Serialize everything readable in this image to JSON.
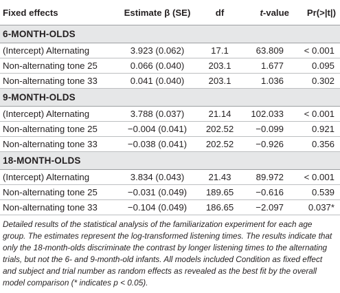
{
  "header": {
    "col1": "Fixed effects",
    "col2": "Estimate β (SE)",
    "col3": "df",
    "col4_t": "t",
    "col4_rest": "-value",
    "col5": "Pr(>|t|)"
  },
  "groups": [
    {
      "label": "6-MONTH-OLDS",
      "rows": [
        [
          "(Intercept) Alternating",
          "3.923 (0.062)",
          "17.1",
          "63.809",
          "< 0.001"
        ],
        [
          "Non-alternating tone 25",
          "0.066 (0.040)",
          "203.1",
          "1.677",
          "0.095"
        ],
        [
          "Non-alternating tone 33",
          "0.041 (0.040)",
          "203.1",
          "1.036",
          "0.302"
        ]
      ]
    },
    {
      "label": "9-MONTH-OLDS",
      "rows": [
        [
          "(Intercept) Alternating",
          "3.788 (0.037)",
          "21.14",
          "102.033",
          "< 0.001"
        ],
        [
          "Non-alternating tone 25",
          "−0.004 (0.041)",
          "202.52",
          "−0.099",
          "0.921"
        ],
        [
          "Non-alternating tone 33",
          "−0.038 (0.041)",
          "202.52",
          "−0.926",
          "0.356"
        ]
      ]
    },
    {
      "label": "18-MONTH-OLDS",
      "rows": [
        [
          "(Intercept) Alternating",
          "3.834 (0.043)",
          "21.43",
          "89.972",
          "< 0.001"
        ],
        [
          "Non-alternating tone 25",
          "−0.031 (0.049)",
          "189.65",
          "−0.616",
          "0.539"
        ],
        [
          "Non-alternating tone 33",
          "−0.104 (0.049)",
          "186.65",
          "−2.097",
          "0.037*"
        ]
      ]
    }
  ],
  "caption": "Detailed results of the statistical analysis of the familiarization experiment for each age group. The estimates represent the log-transformed listening times. The results indicate that only the 18-month-olds discriminate the contrast by longer listening times to the alternating trials, but not the 6- and 9-month-old infants. All models included Condition as fixed effect and subject and trial number as random effects as revealed as the best fit by the overall model comparison (* indicates p < 0.05)."
}
